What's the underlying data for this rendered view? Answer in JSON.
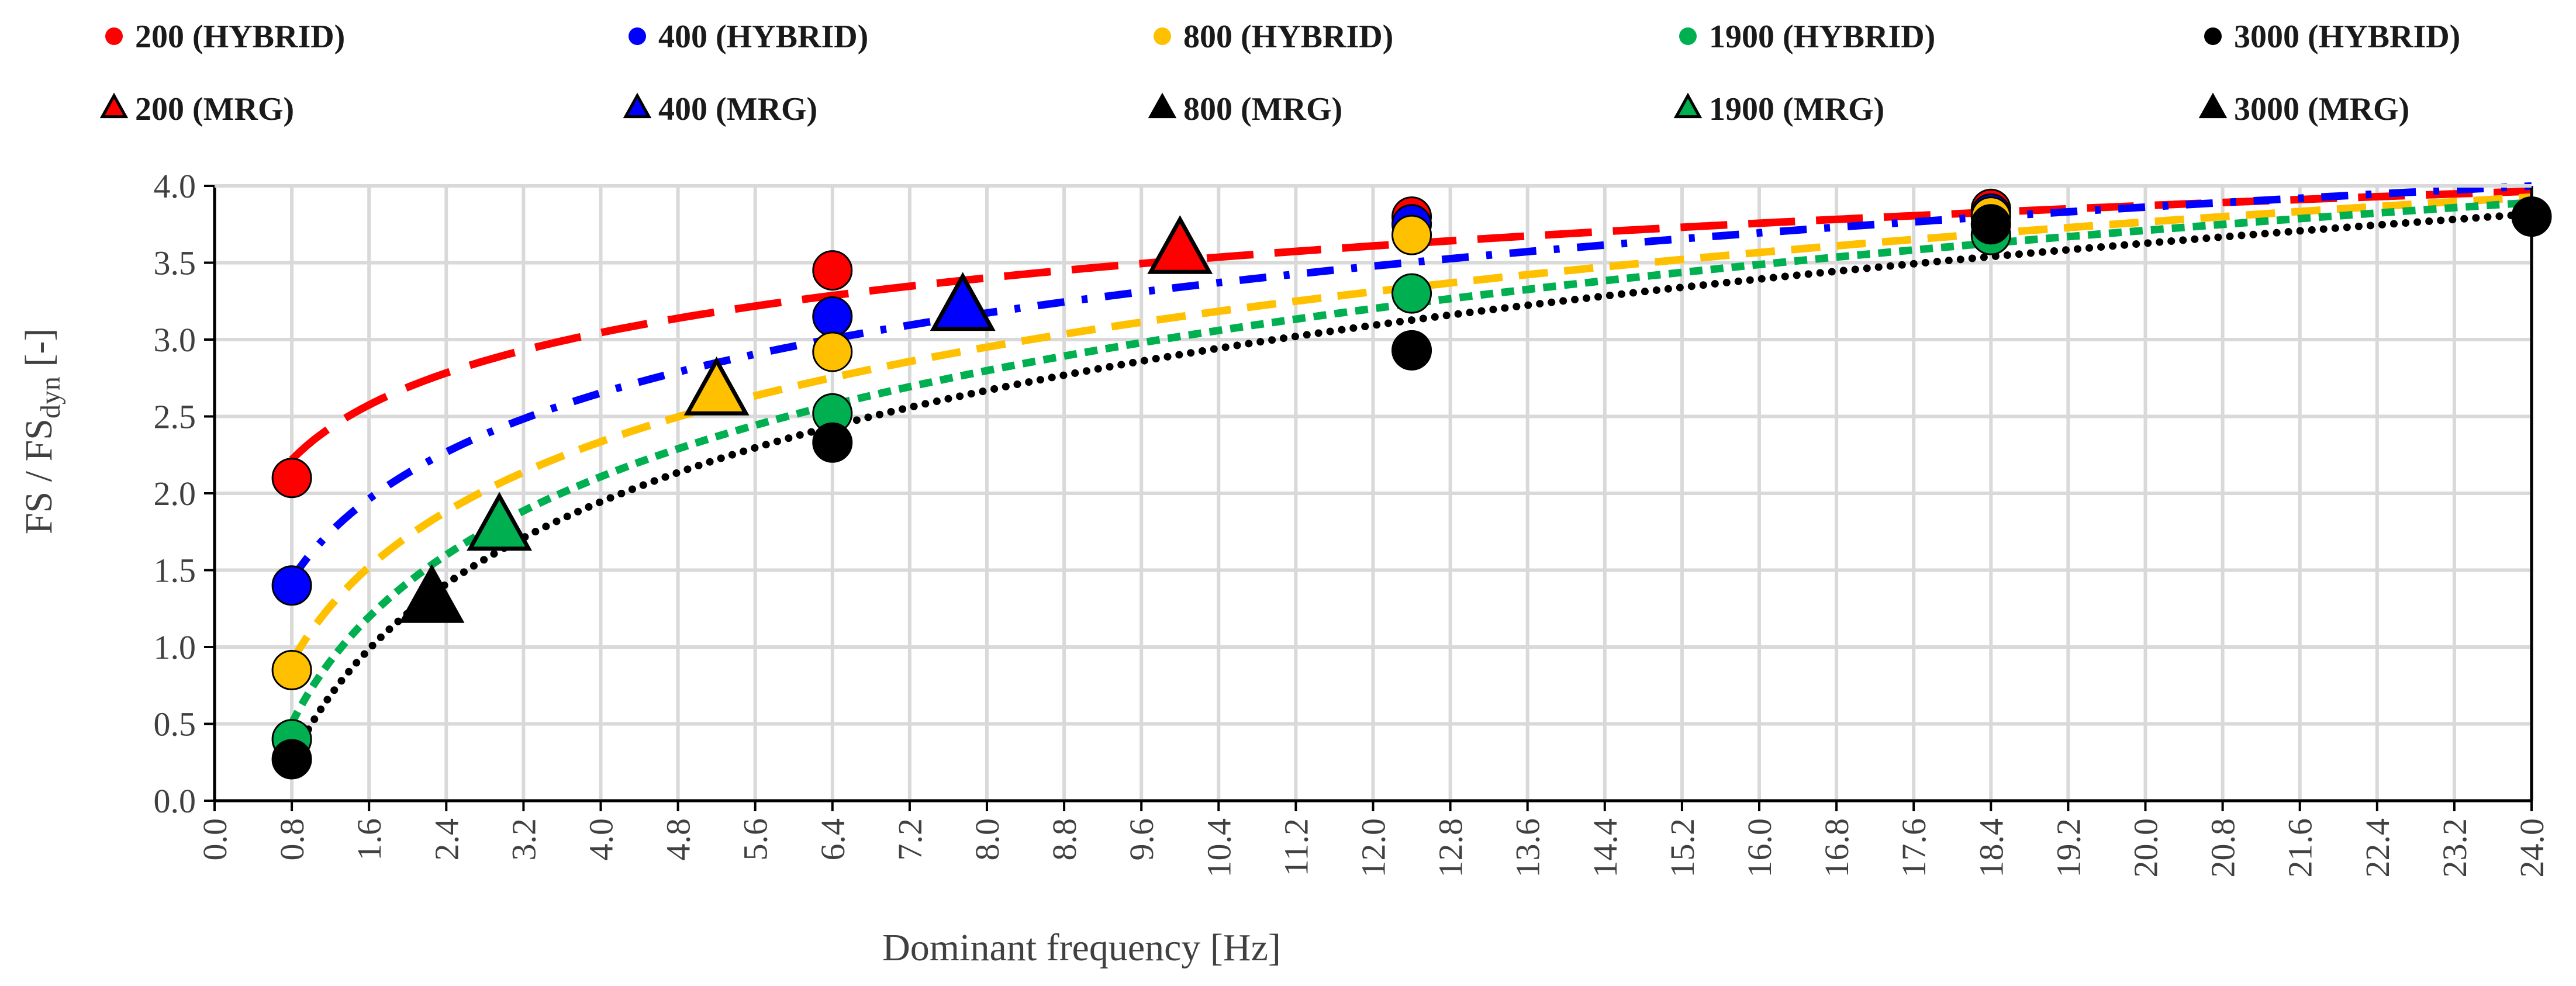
{
  "chart_data": {
    "type": "scatter",
    "title": "",
    "xlabel": "Dominant frequency [Hz]",
    "ylabel": "FS / FSdyn [-]",
    "ylabel_parts": {
      "main": "FS / FS",
      "sub": "dyn",
      "suffix": " [-]"
    },
    "xlim": [
      0,
      24
    ],
    "ylim": [
      0,
      4
    ],
    "xticks": [
      "0.0",
      "0.8",
      "1.6",
      "2.4",
      "3.2",
      "4.0",
      "4.8",
      "5.6",
      "6.4",
      "7.2",
      "8.0",
      "8.8",
      "9.6",
      "10.4",
      "11.2",
      "12.0",
      "12.8",
      "13.6",
      "14.4",
      "15.2",
      "16.0",
      "16.8",
      "17.6",
      "18.4",
      "19.2",
      "20.0",
      "20.8",
      "21.6",
      "22.4",
      "23.2",
      "24.0"
    ],
    "yticks": [
      "0.0",
      "0.5",
      "1.0",
      "1.5",
      "2.0",
      "2.5",
      "3.0",
      "3.5",
      "4.0"
    ],
    "grid": true,
    "legend_position": "top",
    "series": [
      {
        "name": "200 (HYBRID)",
        "marker": "circle",
        "color": "#ff0000",
        "x": [
          0.8,
          6.4,
          12.4,
          18.4
        ],
        "y": [
          2.1,
          3.45,
          3.8,
          3.85
        ]
      },
      {
        "name": "400 (HYBRID)",
        "marker": "circle",
        "color": "#0000ff",
        "x": [
          0.8,
          6.4,
          12.4,
          18.4
        ],
        "y": [
          1.4,
          3.15,
          3.75,
          3.82
        ]
      },
      {
        "name": "800 (HYBRID)",
        "marker": "circle",
        "color": "#ffc000",
        "x": [
          0.8,
          6.4,
          12.4,
          18.4
        ],
        "y": [
          0.85,
          2.92,
          3.68,
          3.8
        ]
      },
      {
        "name": "1900 (HYBRID)",
        "marker": "circle",
        "color": "#00b050",
        "x": [
          0.8,
          6.4,
          12.4,
          18.4
        ],
        "y": [
          0.4,
          2.52,
          3.3,
          3.68
        ]
      },
      {
        "name": "3000 (HYBRID)",
        "marker": "circle",
        "color": "#000000",
        "x": [
          0.8,
          6.4,
          12.4,
          18.4,
          24.0
        ],
        "y": [
          0.27,
          2.33,
          2.93,
          3.75,
          3.8
        ]
      },
      {
        "name": "200 (MRG)",
        "marker": "triangle",
        "color": "#ff0000",
        "x": [
          10.0
        ],
        "y": [
          3.57
        ]
      },
      {
        "name": "400 (MRG)",
        "marker": "triangle",
        "color": "#0000ff",
        "x": [
          7.75
        ],
        "y": [
          3.2
        ]
      },
      {
        "name": "800 (MRG)",
        "marker": "triangle",
        "color": "#ffc000",
        "legend_color": "#000000",
        "x": [
          5.2
        ],
        "y": [
          2.65
        ]
      },
      {
        "name": "1900 (MRG)",
        "marker": "triangle",
        "color": "#00b050",
        "x": [
          2.95
        ],
        "y": [
          1.77
        ]
      },
      {
        "name": "3000 (MRG)",
        "marker": "triangle",
        "color": "#000000",
        "x": [
          2.25
        ],
        "y": [
          1.3
        ]
      }
    ],
    "trendlines": [
      {
        "color": "#ff0000",
        "style": "long-dash",
        "fit": "log",
        "a": 0.5134,
        "b": 2.3335,
        "x_range": [
          0.8,
          24.0
        ]
      },
      {
        "color": "#0000ff",
        "style": "dash-dot",
        "fit": "log",
        "a": 0.7516,
        "b": 1.6102,
        "x_range": [
          0.8,
          24.0
        ]
      },
      {
        "color": "#ffc000",
        "style": "dash",
        "fit": "log",
        "a": 0.8883,
        "b": 1.1038,
        "x_range": [
          0.8,
          24.0
        ]
      },
      {
        "color": "#00b050",
        "style": "square-dot",
        "fit": "log",
        "a": 0.9956,
        "b": 0.7277,
        "x_range": [
          0.8,
          24.0
        ]
      },
      {
        "color": "#000000",
        "style": "round-dot",
        "fit": "log",
        "a": 1.0453,
        "b": 0.4952,
        "x_range": [
          0.8,
          24.0
        ]
      }
    ]
  }
}
